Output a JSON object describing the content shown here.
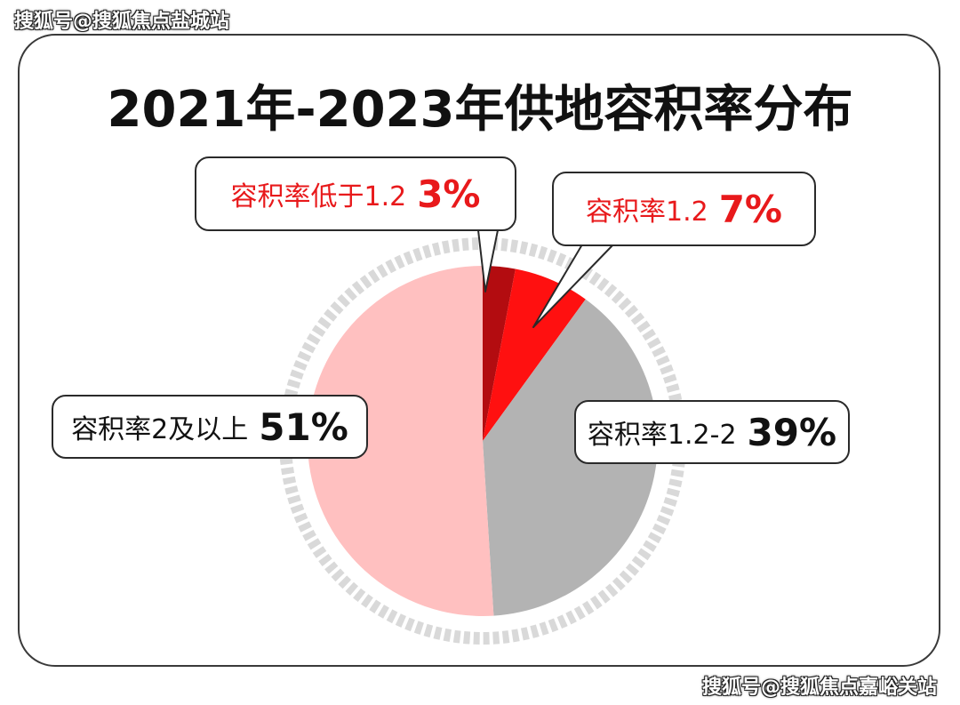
{
  "watermarks": {
    "top": "搜狐号@搜狐焦点盐城站",
    "bottom": "搜狐号@搜狐焦点嘉峪关站"
  },
  "chart_data": {
    "type": "pie",
    "title": "2021年-2023年供地容积率分布",
    "slices": [
      {
        "label": "容积率低于1.2",
        "value": 3,
        "display": "3%",
        "color": "#b30c10"
      },
      {
        "label": "容积率1.2",
        "value": 7,
        "display": "7%",
        "color": "#ff1010"
      },
      {
        "label": "容积率1.2-2",
        "value": 39,
        "display": "39%",
        "color": "#b3b3b3"
      },
      {
        "label": "容积率2及以上",
        "value": 51,
        "display": "51%",
        "color": "#ffc0c0"
      }
    ],
    "start_at": "top",
    "direction": "clockwise",
    "decorative_ring_color": "#d9d9d9"
  }
}
